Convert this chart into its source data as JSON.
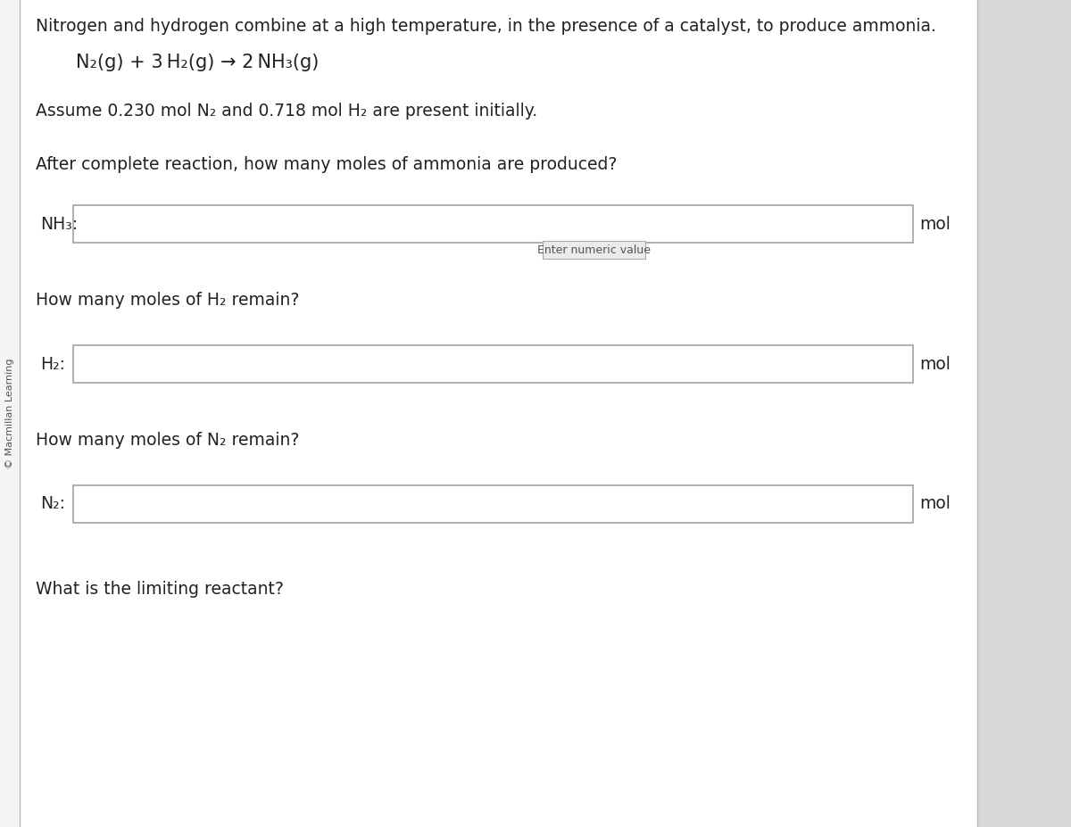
{
  "bg_color": "#ffffff",
  "outer_bg": "#e8e8e8",
  "border_color": "#bbbbbb",
  "text_color": "#222222",
  "sidebar_text": "© Macmillan Learning",
  "sidebar_bg": "#f5f5f5",
  "title_text": "Nitrogen and hydrogen combine at a high temperature, in the presence of a catalyst, to produce ammonia.",
  "equation_text": "N₂(g) + 3 H₂(g) → 2 NH₃(g)",
  "assume_text": "Assume 0.230 mol N₂ and 0.718 mol H₂ are present initially.",
  "q1_text": "After complete reaction, how many moles of ammonia are produced?",
  "label1": "NH₃:",
  "hint_text": "Enter numeric value",
  "mol_text": "mol",
  "q2_text": "How many moles of H₂ remain?",
  "label2": "H₂:",
  "q3_text": "How many moles of N₂ remain?",
  "label3": "N₂:",
  "q4_text": "What is the limiting reactant?",
  "font_size_title": 13.5,
  "font_size_equation": 15,
  "font_size_body": 13.5,
  "font_size_label": 13.5,
  "font_size_hint": 9,
  "font_size_sidebar": 8,
  "font_size_mol": 13.5
}
